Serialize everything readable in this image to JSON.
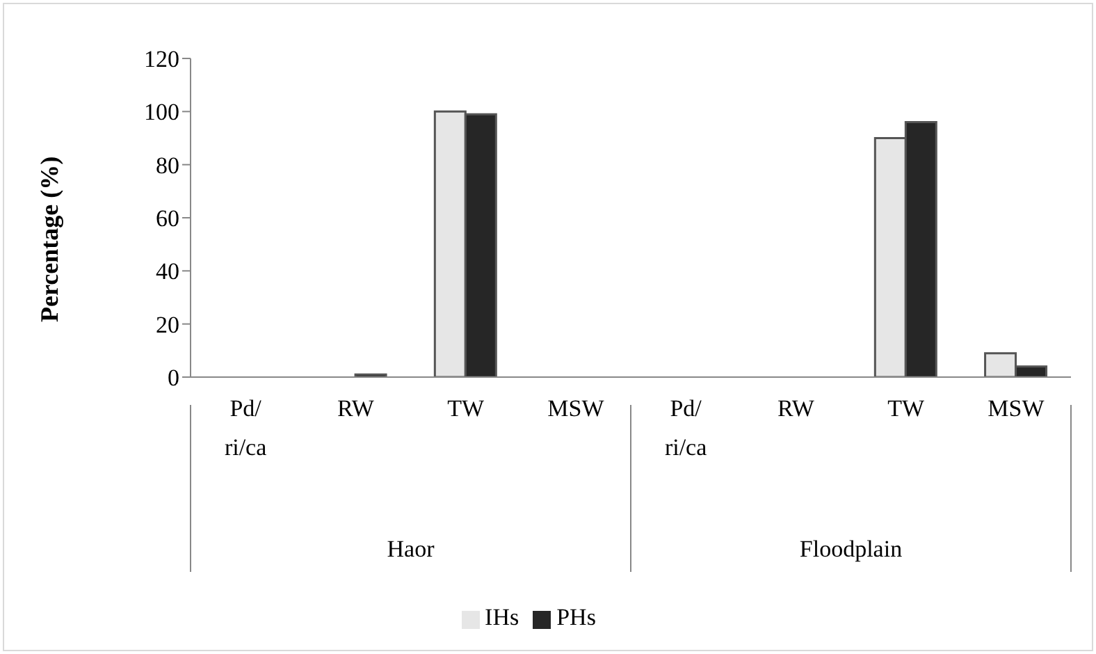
{
  "chart_data": {
    "type": "bar",
    "ylabel": "Percentage (%)",
    "categories": [
      "Pd/ri/ca",
      "RW",
      "TW",
      "MSW",
      "Pd/ri/ca",
      "RW",
      "TW",
      "MSW"
    ],
    "series": [
      {
        "name": "IHs",
        "color": "#e6e6e6",
        "values": [
          0,
          0,
          100,
          0,
          0,
          0,
          90,
          9
        ]
      },
      {
        "name": "PHs",
        "color": "#262626",
        "values": [
          0,
          1,
          99,
          0,
          0,
          0,
          96,
          4
        ]
      }
    ],
    "ylim": [
      0,
      120
    ],
    "yticks": [
      0,
      20,
      40,
      60,
      80,
      100,
      120
    ],
    "legend": "bottom",
    "annotations": [
      "Haor",
      "Floodplain"
    ]
  }
}
